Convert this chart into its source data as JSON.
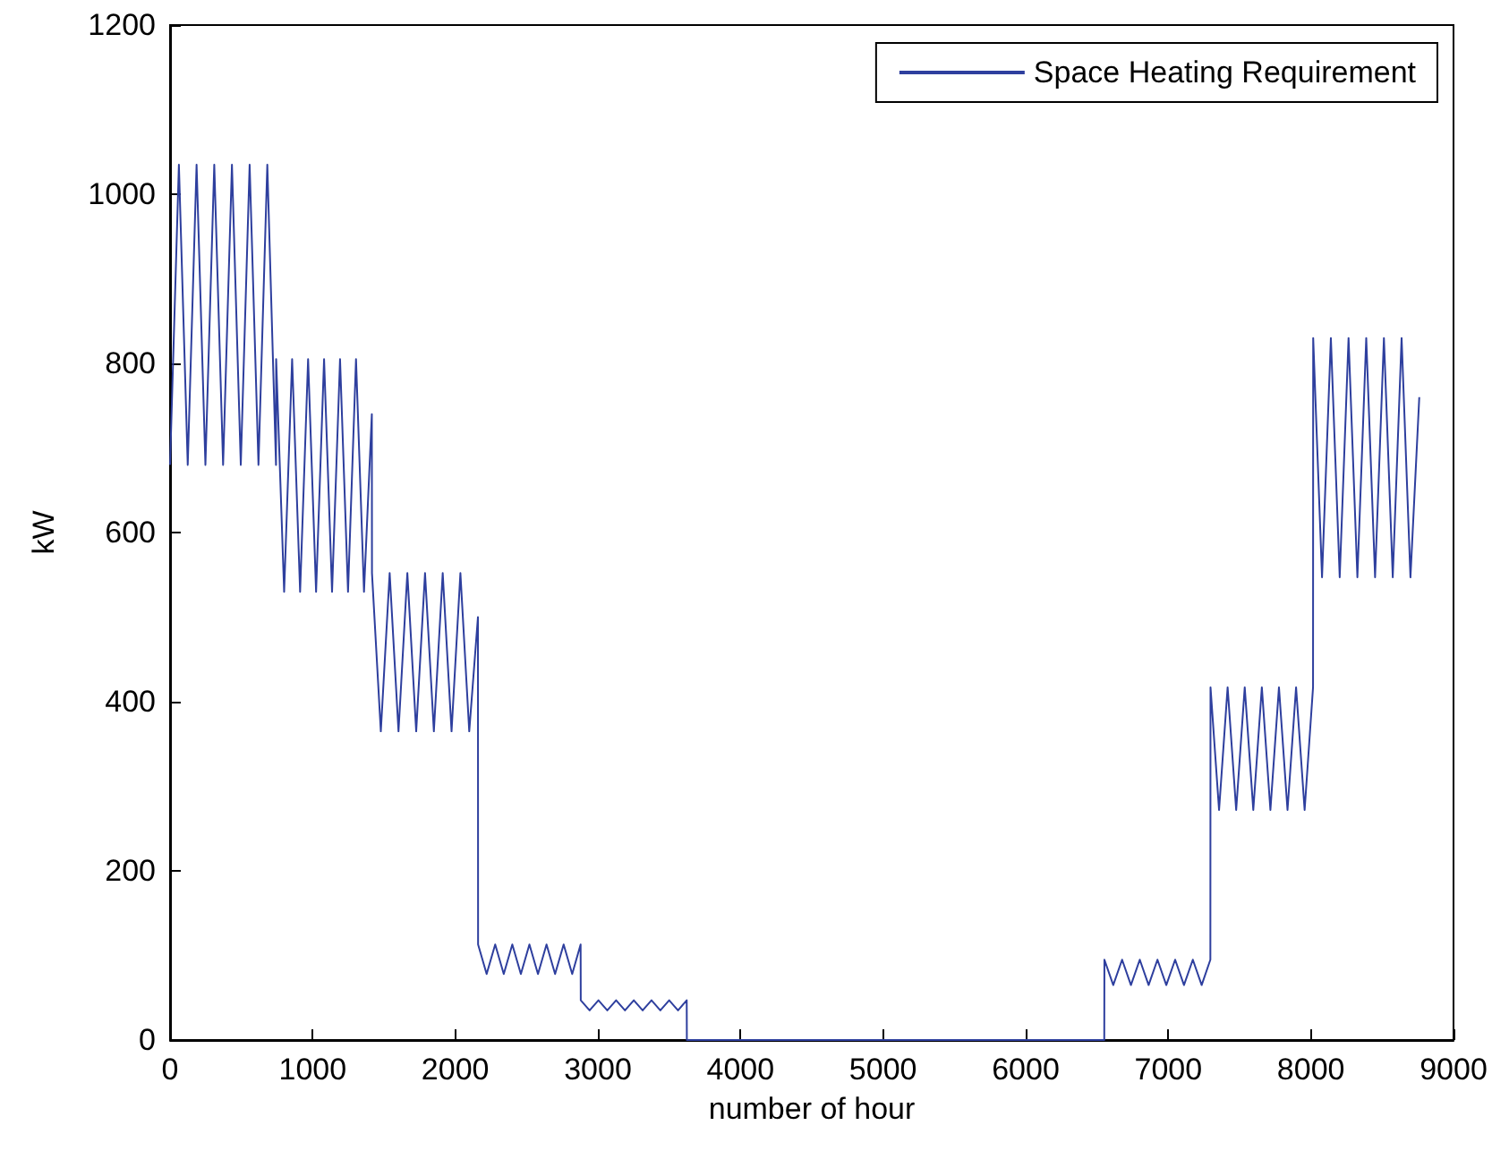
{
  "chart_data": {
    "type": "line",
    "xlabel": "number of hour",
    "ylabel": "kW",
    "xlim": [
      0,
      9000
    ],
    "xticks": [
      0,
      1000,
      2000,
      3000,
      4000,
      5000,
      6000,
      7000,
      8000,
      9000
    ],
    "ylim": [
      0,
      1200
    ],
    "yticks": [
      0,
      200,
      400,
      600,
      800,
      1000,
      1200
    ],
    "grid": false,
    "legend": "top right",
    "marker": "none",
    "line_style": "solid",
    "series": [
      {
        "name": "Space Heating Requirement",
        "color": "#2e3f9e",
        "x": [
          0,
          62,
          124,
          186,
          248,
          310,
          372,
          434,
          496,
          558,
          620,
          682,
          743,
          744,
          800,
          856,
          912,
          968,
          1024,
          1080,
          1136,
          1192,
          1248,
          1304,
          1360,
          1415,
          1416,
          1478,
          1540,
          1602,
          1664,
          1726,
          1788,
          1850,
          1912,
          1974,
          2036,
          2098,
          2159,
          2160,
          2220,
          2280,
          2340,
          2400,
          2460,
          2520,
          2580,
          2640,
          2700,
          2760,
          2820,
          2879,
          2880,
          2942,
          3004,
          3066,
          3128,
          3190,
          3252,
          3314,
          3376,
          3438,
          3500,
          3562,
          3623,
          3624,
          6551,
          6552,
          6614,
          6676,
          6738,
          6800,
          6862,
          6924,
          6986,
          7048,
          7110,
          7172,
          7234,
          7295,
          7296,
          7356,
          7416,
          7476,
          7536,
          7596,
          7656,
          7716,
          7776,
          7836,
          7896,
          7956,
          8015,
          8016,
          8078,
          8140,
          8202,
          8264,
          8326,
          8388,
          8450,
          8512,
          8574,
          8636,
          8698,
          8760
        ],
        "values": [
          680,
          1035,
          680,
          1035,
          680,
          1035,
          680,
          1035,
          680,
          1035,
          680,
          1035,
          680,
          805,
          530,
          805,
          530,
          805,
          530,
          805,
          530,
          805,
          530,
          805,
          530,
          740,
          552,
          365,
          552,
          365,
          552,
          365,
          552,
          365,
          552,
          365,
          552,
          365,
          500,
          113,
          78,
          113,
          78,
          113,
          78,
          113,
          78,
          113,
          78,
          113,
          78,
          113,
          47,
          35,
          47,
          35,
          47,
          35,
          47,
          35,
          47,
          35,
          47,
          35,
          47,
          0,
          0,
          95,
          65,
          95,
          65,
          95,
          65,
          95,
          65,
          95,
          65,
          95,
          65,
          95,
          417,
          272,
          417,
          272,
          417,
          272,
          417,
          272,
          417,
          272,
          417,
          272,
          417,
          830,
          547,
          830,
          547,
          830,
          547,
          830,
          547,
          830,
          547,
          830,
          547,
          760
        ]
      }
    ]
  }
}
